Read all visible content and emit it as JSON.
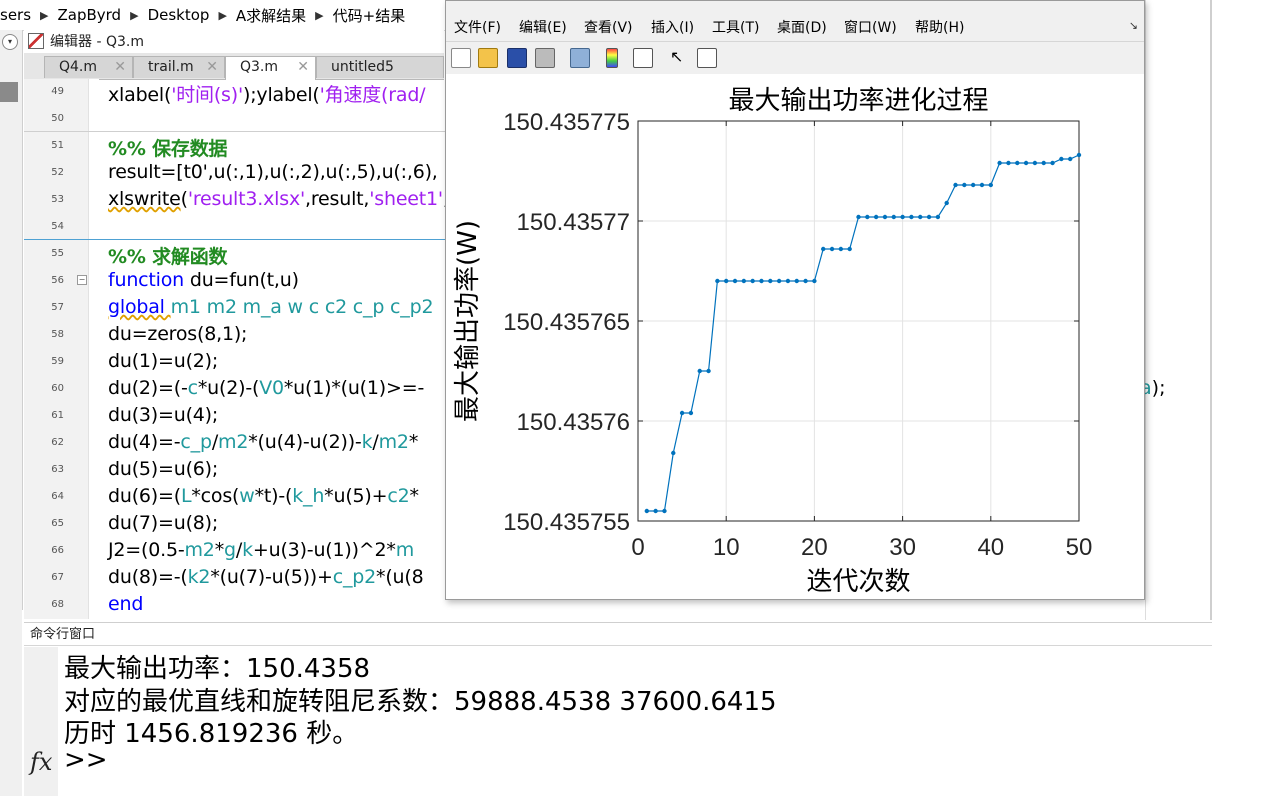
{
  "breadcrumb": [
    "sers",
    "ZapByrd",
    "Desktop",
    "A求解结果",
    "代码+结果"
  ],
  "editor": {
    "title": "编辑器 - Q3.m",
    "tabs": [
      {
        "label": "Q4.m",
        "active": false
      },
      {
        "label": "trail.m",
        "active": false
      },
      {
        "label": "Q3.m",
        "active": true
      },
      {
        "label": "untitled5",
        "active": false
      }
    ],
    "lines": [
      {
        "n": "49",
        "segs": [
          {
            "t": "xlabel(",
            "c": ""
          },
          {
            "t": "'时间(s)'",
            "c": "str"
          },
          {
            "t": ");ylabel(",
            "c": ""
          },
          {
            "t": "'角速度(rad/",
            "c": "str"
          }
        ]
      },
      {
        "n": "50",
        "segs": []
      },
      {
        "n": "51",
        "segs": [
          {
            "t": "%% 保存数据",
            "c": "cm"
          }
        ]
      },
      {
        "n": "52",
        "segs": [
          {
            "t": "result=[t0',u(:,1),u(:,2),u(:,5),u(:,6),",
            "c": ""
          }
        ]
      },
      {
        "n": "53",
        "segs": [
          {
            "t": "xlswrite",
            "c": "wavy"
          },
          {
            "t": "(",
            "c": ""
          },
          {
            "t": "'result3.xlsx'",
            "c": "str"
          },
          {
            "t": ",result,",
            "c": ""
          },
          {
            "t": "'sheet1'",
            "c": "str"
          },
          {
            "t": ",",
            "c": ""
          }
        ]
      },
      {
        "n": "54",
        "segs": []
      },
      {
        "n": "55",
        "segs": [
          {
            "t": "%% 求解函数",
            "c": "cm"
          }
        ]
      },
      {
        "n": "56",
        "segs": [
          {
            "t": "function ",
            "c": "kw"
          },
          {
            "t": "du=fun(t,u)",
            "c": ""
          }
        ]
      },
      {
        "n": "57",
        "segs": [
          {
            "t": "global ",
            "c": "kw wavy"
          },
          {
            "t": "m1 m2 m_a w c c2 c_p c_p2",
            "c": "gv"
          }
        ]
      },
      {
        "n": "58",
        "segs": [
          {
            "t": "du=zeros(8,1);",
            "c": ""
          }
        ]
      },
      {
        "n": "59",
        "segs": [
          {
            "t": "du(1)=u(2);",
            "c": ""
          }
        ]
      },
      {
        "n": "60",
        "segs": [
          {
            "t": "du(2)=(-",
            "c": ""
          },
          {
            "t": "c",
            "c": "gv"
          },
          {
            "t": "*u(2)-(",
            "c": ""
          },
          {
            "t": "V0",
            "c": "gv"
          },
          {
            "t": "*u(1)*(u(1)>=-",
            "c": ""
          }
        ]
      },
      {
        "n": "61",
        "segs": [
          {
            "t": "du(3)=u(4);",
            "c": ""
          }
        ]
      },
      {
        "n": "62",
        "segs": [
          {
            "t": "du(4)=-",
            "c": ""
          },
          {
            "t": "c_p",
            "c": "gv"
          },
          {
            "t": "/",
            "c": ""
          },
          {
            "t": "m2",
            "c": "gv"
          },
          {
            "t": "*(u(4)-u(2))-",
            "c": ""
          },
          {
            "t": "k",
            "c": "gv"
          },
          {
            "t": "/",
            "c": ""
          },
          {
            "t": "m2",
            "c": "gv"
          },
          {
            "t": "*",
            "c": ""
          }
        ]
      },
      {
        "n": "63",
        "segs": [
          {
            "t": "du(5)=u(6);",
            "c": ""
          }
        ]
      },
      {
        "n": "64",
        "segs": [
          {
            "t": "du(6)=(",
            "c": ""
          },
          {
            "t": "L",
            "c": "gv"
          },
          {
            "t": "*cos(",
            "c": ""
          },
          {
            "t": "w",
            "c": "gv"
          },
          {
            "t": "*t)-(",
            "c": ""
          },
          {
            "t": "k_h",
            "c": "gv"
          },
          {
            "t": "*u(5)+",
            "c": ""
          },
          {
            "t": "c2",
            "c": "gv"
          },
          {
            "t": "*",
            "c": ""
          }
        ]
      },
      {
        "n": "65",
        "segs": [
          {
            "t": "du(7)=u(8);",
            "c": ""
          }
        ]
      },
      {
        "n": "66",
        "segs": [
          {
            "t": "J2=(0.5-",
            "c": ""
          },
          {
            "t": "m2",
            "c": "gv"
          },
          {
            "t": "*",
            "c": ""
          },
          {
            "t": "g",
            "c": "gv"
          },
          {
            "t": "/",
            "c": ""
          },
          {
            "t": "k",
            "c": "gv"
          },
          {
            "t": "+u(3)-u(1))^2*",
            "c": ""
          },
          {
            "t": "m",
            "c": "gv"
          }
        ]
      },
      {
        "n": "67",
        "segs": [
          {
            "t": "du(8)=-(",
            "c": ""
          },
          {
            "t": "k2",
            "c": "gv"
          },
          {
            "t": "*(u(7)-u(5))+",
            "c": ""
          },
          {
            "t": "c_p2",
            "c": "gv"
          },
          {
            "t": "*(u(8",
            "c": ""
          }
        ]
      },
      {
        "n": "68",
        "segs": [
          {
            "t": "end",
            "c": "kw"
          }
        ]
      }
    ],
    "right_fragment": {
      "var": "m_a",
      "tail": ");"
    }
  },
  "figure": {
    "menus": [
      "文件(F)",
      "编辑(E)",
      "查看(V)",
      "插入(I)",
      "工具(T)",
      "桌面(D)",
      "窗口(W)",
      "帮助(H)"
    ],
    "toolbar_icons": [
      "new-icon",
      "open-icon",
      "save-icon",
      "print-icon",
      "link-icon",
      "colorbar-icon",
      "legend-icon",
      "pointer-icon",
      "panel-icon"
    ]
  },
  "chart_data": {
    "type": "line",
    "title": "最大输出功率进化过程",
    "xlabel": "迭代次数",
    "ylabel": "最大输出功率(W)",
    "xlim": [
      0,
      50
    ],
    "ylim": [
      150.435755,
      150.435775
    ],
    "xticks": [
      "0",
      "10",
      "20",
      "30",
      "40",
      "50"
    ],
    "yticks": [
      "150.435755",
      "150.43576",
      "150.435765",
      "150.43577",
      "150.435775"
    ],
    "grid": true,
    "color": "#0072bd",
    "x": [
      1,
      2,
      3,
      4,
      5,
      6,
      7,
      8,
      9,
      10,
      11,
      12,
      13,
      14,
      15,
      16,
      17,
      18,
      19,
      20,
      21,
      22,
      23,
      24,
      25,
      26,
      27,
      28,
      29,
      30,
      31,
      32,
      33,
      34,
      35,
      36,
      37,
      38,
      39,
      40,
      41,
      42,
      43,
      44,
      45,
      46,
      47,
      48,
      49,
      50
    ],
    "y": [
      150.4357555,
      150.4357555,
      150.4357555,
      150.4357584,
      150.4357604,
      150.4357604,
      150.4357625,
      150.4357625,
      150.435767,
      150.435767,
      150.435767,
      150.435767,
      150.435767,
      150.435767,
      150.435767,
      150.435767,
      150.435767,
      150.435767,
      150.435767,
      150.435767,
      150.4357686,
      150.4357686,
      150.4357686,
      150.4357686,
      150.4357702,
      150.4357702,
      150.4357702,
      150.4357702,
      150.4357702,
      150.4357702,
      150.4357702,
      150.4357702,
      150.4357702,
      150.4357702,
      150.4357709,
      150.4357718,
      150.4357718,
      150.4357718,
      150.4357718,
      150.4357718,
      150.4357729,
      150.4357729,
      150.4357729,
      150.4357729,
      150.4357729,
      150.4357729,
      150.4357729,
      150.4357731,
      150.4357731,
      150.4357733
    ]
  },
  "command_window": {
    "header": "命令行窗口",
    "lines": [
      "最大输出功率：150.4358",
      "对应的最优直线和旋转阻尼系数：59888.4538    37600.6415",
      "历时 1456.819236 秒。",
      ">>"
    ],
    "fx": "fx"
  }
}
